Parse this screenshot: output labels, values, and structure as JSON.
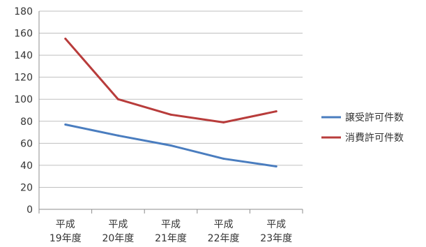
{
  "chart_data": {
    "type": "line",
    "categories": [
      [
        "平成",
        "19年度"
      ],
      [
        "平成",
        "20年度"
      ],
      [
        "平成",
        "21年度"
      ],
      [
        "平成",
        "22年度"
      ],
      [
        "平成",
        "23年度"
      ]
    ],
    "ylim": [
      0,
      180
    ],
    "yticks": [
      0,
      20,
      40,
      60,
      80,
      100,
      120,
      140,
      160,
      180
    ],
    "grid": true,
    "legend_position": "right",
    "series": [
      {
        "name": "譲受許可件数",
        "color": "#4a7dbf",
        "values": [
          77,
          67,
          58,
          46,
          39
        ]
      },
      {
        "name": "消費許可件数",
        "color": "#b83c3b",
        "values": [
          155,
          100,
          86,
          79,
          89
        ]
      }
    ]
  }
}
